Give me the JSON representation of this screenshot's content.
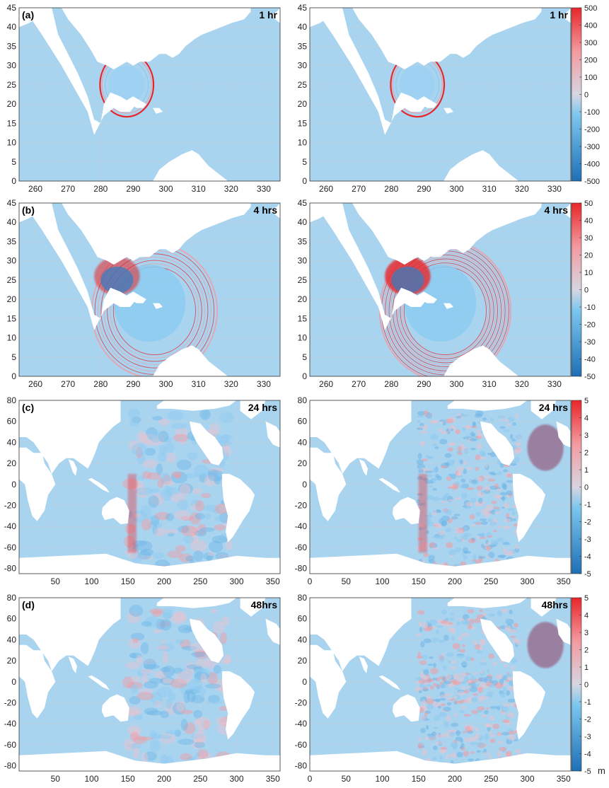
{
  "chart_data": {
    "type": "heatmap",
    "panels": [
      {
        "label": "(a)",
        "time": "1 hr",
        "column": "left",
        "xlim": [
          255,
          335
        ],
        "ylim": [
          0,
          45
        ],
        "xticks": [
          "260",
          "270",
          "280",
          "290",
          "300",
          "310",
          "320",
          "330"
        ],
        "yticks": [
          "0",
          "5",
          "10",
          "15",
          "20",
          "25",
          "30",
          "35",
          "40",
          "45"
        ],
        "map": "regional",
        "stage": 1
      },
      {
        "label": "",
        "time": "1 hr",
        "column": "right",
        "xlim": [
          255,
          335
        ],
        "ylim": [
          0,
          45
        ],
        "xticks": [
          "260",
          "270",
          "280",
          "290",
          "300",
          "310",
          "320",
          "330"
        ],
        "yticks": [
          "0",
          "5",
          "10",
          "15",
          "20",
          "25",
          "30",
          "35",
          "40",
          "45"
        ],
        "map": "regional",
        "stage": 1
      },
      {
        "label": "(b)",
        "time": "4 hrs",
        "column": "left",
        "xlim": [
          255,
          335
        ],
        "ylim": [
          0,
          45
        ],
        "xticks": [
          "260",
          "270",
          "280",
          "290",
          "300",
          "310",
          "320",
          "330"
        ],
        "yticks": [
          "0",
          "5",
          "10",
          "15",
          "20",
          "25",
          "30",
          "35",
          "40",
          "45"
        ],
        "map": "regional",
        "stage": 4
      },
      {
        "label": "",
        "time": "4 hrs",
        "column": "right",
        "xlim": [
          255,
          335
        ],
        "ylim": [
          0,
          45
        ],
        "xticks": [
          "260",
          "270",
          "280",
          "290",
          "300",
          "310",
          "320",
          "330"
        ],
        "yticks": [
          "0",
          "5",
          "10",
          "15",
          "20",
          "25",
          "30",
          "35",
          "40",
          "45"
        ],
        "map": "regional",
        "stage": 4
      },
      {
        "label": "(c)",
        "time": "24 hrs",
        "column": "left",
        "xlim": [
          0,
          360
        ],
        "ylim": [
          -85,
          80
        ],
        "xticks": [
          "50",
          "100",
          "150",
          "200",
          "250",
          "300",
          "350"
        ],
        "yticks": [
          "-80",
          "-60",
          "-40",
          "-20",
          "0",
          "20",
          "40",
          "60",
          "80"
        ],
        "map": "global",
        "stage": 24
      },
      {
        "label": "",
        "time": "24 hrs",
        "column": "right",
        "xlim": [
          0,
          360
        ],
        "ylim": [
          -85,
          80
        ],
        "xticks": [
          "0",
          "50",
          "100",
          "150",
          "200",
          "250",
          "300",
          "350"
        ],
        "yticks": [
          "-80",
          "-60",
          "-40",
          "-20",
          "0",
          "20",
          "40",
          "60",
          "80"
        ],
        "map": "global",
        "stage": 24
      },
      {
        "label": "(d)",
        "time": "48hrs",
        "column": "left",
        "xlim": [
          0,
          360
        ],
        "ylim": [
          -85,
          80
        ],
        "xticks": [
          "50",
          "100",
          "150",
          "200",
          "250",
          "300",
          "350"
        ],
        "yticks": [
          "-80",
          "-60",
          "-40",
          "-20",
          "0",
          "20",
          "40",
          "60",
          "80"
        ],
        "map": "global",
        "stage": 48
      },
      {
        "label": "",
        "time": "48hrs",
        "column": "right",
        "xlim": [
          0,
          360
        ],
        "ylim": [
          -85,
          80
        ],
        "xticks": [
          "0",
          "50",
          "100",
          "150",
          "200",
          "250",
          "300",
          "350"
        ],
        "yticks": [
          "-80",
          "-60",
          "-40",
          "-20",
          "0",
          "20",
          "40",
          "60",
          "80"
        ],
        "map": "global",
        "stage": 48
      }
    ],
    "colorbars": [
      {
        "row": 1,
        "min": -500,
        "max": 500,
        "ticks": [
          "500",
          "400",
          "300",
          "200",
          "100",
          "0",
          "-100",
          "-200",
          "-300",
          "-400",
          "-500"
        ],
        "unit": ""
      },
      {
        "row": 2,
        "min": -50,
        "max": 50,
        "ticks": [
          "50",
          "40",
          "30",
          "20",
          "10",
          "0",
          "-10",
          "-20",
          "-30",
          "-40",
          "-50"
        ],
        "unit": ""
      },
      {
        "row": 3,
        "min": -5,
        "max": 5,
        "ticks": [
          "5",
          "4",
          "3",
          "2",
          "1",
          "0",
          "-1",
          "-2",
          "-3",
          "-4",
          "-5"
        ],
        "unit": ""
      },
      {
        "row": 4,
        "min": -5,
        "max": 5,
        "ticks": [
          "5",
          "4",
          "3",
          "2",
          "1",
          "0",
          "-1",
          "-2",
          "-3",
          "-4",
          "-5"
        ],
        "unit": "m"
      }
    ],
    "colors": {
      "positive": "#e8262a",
      "neutral": "#d6d6e2",
      "ocean": "#a9d4f0",
      "negative": "#1f6fb5",
      "land": "#ffffff",
      "grid": "#cccccc"
    }
  }
}
